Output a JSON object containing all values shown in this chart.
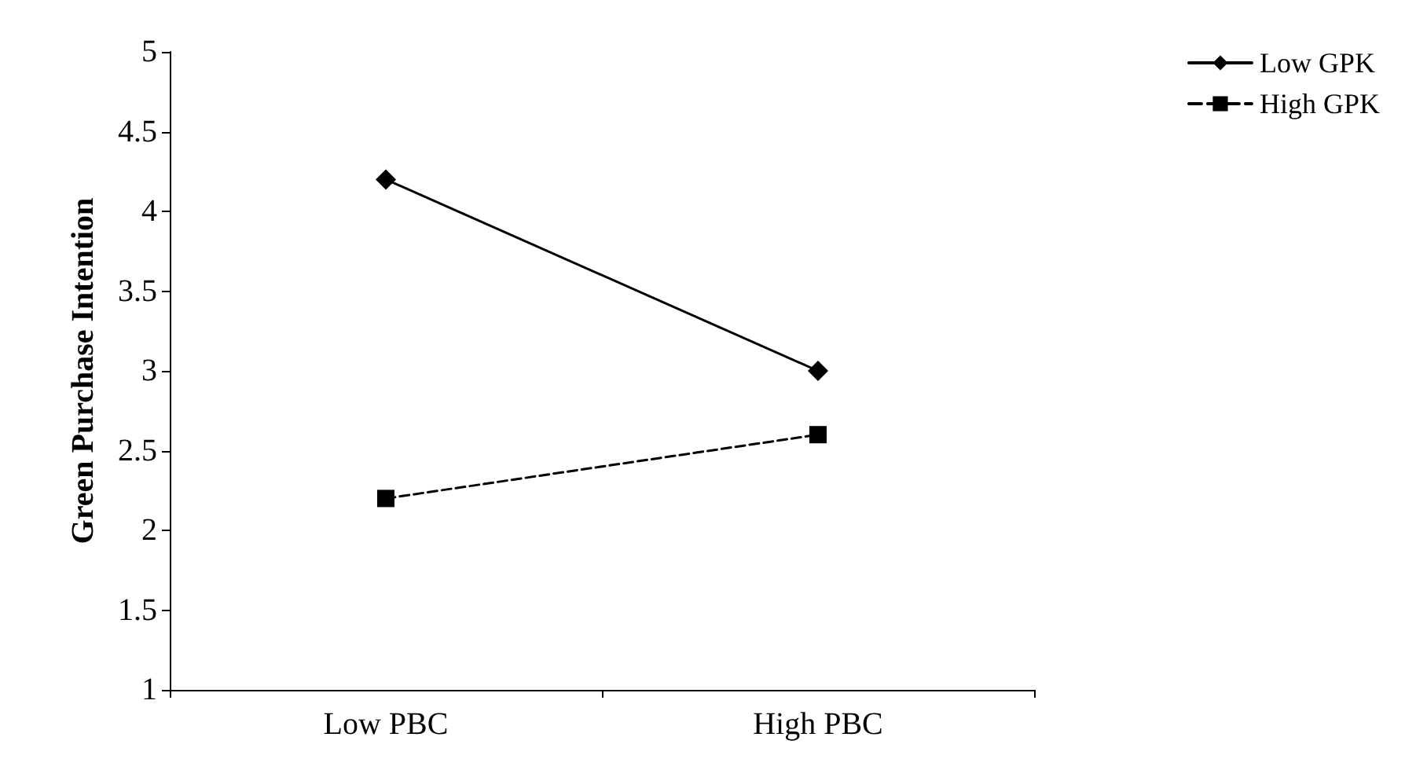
{
  "chart_data": {
    "type": "line",
    "ylabel": "Green Purchase Intention",
    "categories": [
      "Low PBC",
      "High PBC"
    ],
    "series": [
      {
        "name": "Low GPK",
        "color": "#000000",
        "values": [
          4.2,
          3.0
        ],
        "marker": "diamond",
        "line_style": "solid"
      },
      {
        "name": "High GPK",
        "color": "#000000",
        "values": [
          2.2,
          2.6
        ],
        "marker": "square",
        "line_style": "dashed"
      }
    ],
    "ylim": [
      1,
      5
    ],
    "yticks": [
      1,
      1.5,
      2,
      2.5,
      3,
      3.5,
      4,
      4.5,
      5
    ],
    "grid": false,
    "legend": "top right"
  }
}
